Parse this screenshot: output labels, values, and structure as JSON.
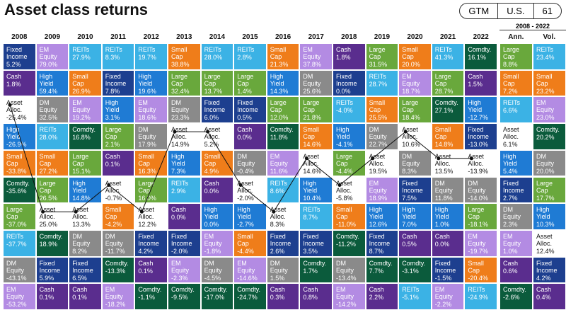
{
  "header": {
    "title": "Asset class returns",
    "badges": [
      "GTM",
      "U.S.",
      "61"
    ]
  },
  "table": {
    "period_label": "2008 - 2022",
    "marked_asset": "Asset Alloc.",
    "asset_colors": {
      "Fixed Income": "#1d3f8f",
      "Cash": "#5a2d8e",
      "Asset Alloc.": "#ffffff",
      "High Yield": "#1f7bd4",
      "Small Cap": "#ef7d1a",
      "Comdty.": "#0b5b3c",
      "Large Cap": "#69a83c",
      "REITs": "#3bb2e5",
      "DM Equity": "#8a8a8a",
      "EM Equity": "#b38be3"
    },
    "columns": [
      {
        "label": "2008",
        "cells": [
          [
            "Fixed Income",
            "5.2%"
          ],
          [
            "Cash",
            "1.8%"
          ],
          [
            "Asset Alloc.",
            "-25.4%"
          ],
          [
            "High Yield",
            "-26.9%"
          ],
          [
            "Small Cap",
            "-33.8%"
          ],
          [
            "Comdty.",
            "-35.6%"
          ],
          [
            "Large Cap",
            "-37.0%"
          ],
          [
            "REITs",
            "-37.7%"
          ],
          [
            "DM Equity",
            "-43.1%"
          ],
          [
            "EM Equity",
            "-53.2%"
          ]
        ]
      },
      {
        "label": "2009",
        "cells": [
          [
            "EM Equity",
            "79.0%"
          ],
          [
            "High Yield",
            "59.4%"
          ],
          [
            "DM Equity",
            "32.5%"
          ],
          [
            "REITs",
            "28.0%"
          ],
          [
            "Small Cap",
            "27.2%"
          ],
          [
            "Large Cap",
            "26.5%"
          ],
          [
            "Asset Alloc.",
            "25.0%"
          ],
          [
            "Comdty.",
            "18.9%"
          ],
          [
            "Fixed Income",
            "5.9%"
          ],
          [
            "Cash",
            "0.1%"
          ]
        ]
      },
      {
        "label": "2010",
        "cells": [
          [
            "REITs",
            "27.9%"
          ],
          [
            "Small Cap",
            "26.9%"
          ],
          [
            "EM Equity",
            "19.2%"
          ],
          [
            "Comdty.",
            "16.8%"
          ],
          [
            "Large Cap",
            "15.1%"
          ],
          [
            "High Yield",
            "14.8%"
          ],
          [
            "Asset Alloc.",
            "13.3%"
          ],
          [
            "DM Equity",
            "8.2%"
          ],
          [
            "Fixed Income",
            "6.5%"
          ],
          [
            "Cash",
            "0.1%"
          ]
        ]
      },
      {
        "label": "2011",
        "cells": [
          [
            "REITs",
            "8.3%"
          ],
          [
            "Fixed Income",
            "7.8%"
          ],
          [
            "High Yield",
            "3.1%"
          ],
          [
            "Large Cap",
            "2.1%"
          ],
          [
            "Cash",
            "0.1%"
          ],
          [
            "Asset Alloc.",
            "-0.7%"
          ],
          [
            "Small Cap",
            "-4.2%"
          ],
          [
            "DM Equity",
            "-11.7%"
          ],
          [
            "Comdty.",
            "-13.3%"
          ],
          [
            "EM Equity",
            "-18.2%"
          ]
        ]
      },
      {
        "label": "2012",
        "cells": [
          [
            "REITs",
            "19.7%"
          ],
          [
            "High Yield",
            "19.6%"
          ],
          [
            "EM Equity",
            "18.6%"
          ],
          [
            "DM Equity",
            "17.9%"
          ],
          [
            "Small Cap",
            "16.3%"
          ],
          [
            "Large Cap",
            "16.0%"
          ],
          [
            "Asset Alloc.",
            "12.2%"
          ],
          [
            "Fixed Income",
            "4.2%"
          ],
          [
            "Cash",
            "0.1%"
          ],
          [
            "Comdty.",
            "-1.1%"
          ]
        ]
      },
      {
        "label": "2013",
        "cells": [
          [
            "Small Cap",
            "38.8%"
          ],
          [
            "Large Cap",
            "32.4%"
          ],
          [
            "DM Equity",
            "23.3%"
          ],
          [
            "Asset Alloc.",
            "14.9%"
          ],
          [
            "High Yield",
            "7.3%"
          ],
          [
            "REITs",
            "2.9%"
          ],
          [
            "Cash",
            "0.0%"
          ],
          [
            "Fixed Income",
            "-2.0%"
          ],
          [
            "EM Equity",
            "-2.3%"
          ],
          [
            "Comdty.",
            "-9.5%"
          ]
        ]
      },
      {
        "label": "2014",
        "cells": [
          [
            "REITs",
            "28.0%"
          ],
          [
            "Large Cap",
            "13.7%"
          ],
          [
            "Fixed Income",
            "6.0%"
          ],
          [
            "Asset Alloc.",
            "5.2%"
          ],
          [
            "Small Cap",
            "4.9%"
          ],
          [
            "Cash",
            "0.0%"
          ],
          [
            "High Yield",
            "0.0%"
          ],
          [
            "EM Equity",
            "-1.8%"
          ],
          [
            "DM Equity",
            "-4.5%"
          ],
          [
            "Comdty.",
            "-17.0%"
          ]
        ]
      },
      {
        "label": "2015",
        "cells": [
          [
            "REITs",
            "2.8%"
          ],
          [
            "Large Cap",
            "1.4%"
          ],
          [
            "Fixed Income",
            "0.5%"
          ],
          [
            "Cash",
            "0.0%"
          ],
          [
            "DM Equity",
            "-0.4%"
          ],
          [
            "Asset Alloc.",
            "-2.0%"
          ],
          [
            "High Yield",
            "-2.7%"
          ],
          [
            "Small Cap",
            "-4.4%"
          ],
          [
            "EM Equity",
            "-14.6%"
          ],
          [
            "Comdty.",
            "-24.7%"
          ]
        ]
      },
      {
        "label": "2016",
        "cells": [
          [
            "Small Cap",
            "21.3%"
          ],
          [
            "High Yield",
            "14.3%"
          ],
          [
            "Large Cap",
            "12.0%"
          ],
          [
            "Comdty.",
            "11.8%"
          ],
          [
            "EM Equity",
            "11.6%"
          ],
          [
            "REITs",
            "8.6%"
          ],
          [
            "Asset Alloc.",
            "8.3%"
          ],
          [
            "Fixed Income",
            "2.6%"
          ],
          [
            "DM Equity",
            "1.5%"
          ],
          [
            "Cash",
            "0.3%"
          ]
        ]
      },
      {
        "label": "2017",
        "cells": [
          [
            "EM Equity",
            "37.8%"
          ],
          [
            "DM Equity",
            "25.6%"
          ],
          [
            "Large Cap",
            "21.8%"
          ],
          [
            "Small Cap",
            "14.6%"
          ],
          [
            "Asset Alloc.",
            "14.6%"
          ],
          [
            "High Yield",
            "10.4%"
          ],
          [
            "REITs",
            "8.7%"
          ],
          [
            "Fixed Income",
            "3.5%"
          ],
          [
            "Comdty.",
            "1.7%"
          ],
          [
            "Cash",
            "0.8%"
          ]
        ]
      },
      {
        "label": "2018",
        "cells": [
          [
            "Cash",
            "1.8%"
          ],
          [
            "Fixed Income",
            "0.0%"
          ],
          [
            "REITs",
            "-4.0%"
          ],
          [
            "High Yield",
            "-4.1%"
          ],
          [
            "Large Cap",
            "-4.4%"
          ],
          [
            "Asset Alloc.",
            "-5.8%"
          ],
          [
            "Small Cap",
            "-11.0%"
          ],
          [
            "Comdty.",
            "-11.2%"
          ],
          [
            "DM Equity",
            "-13.4%"
          ],
          [
            "EM Equity",
            "-14.2%"
          ]
        ]
      },
      {
        "label": "2019",
        "cells": [
          [
            "Large Cap",
            "31.5%"
          ],
          [
            "REITs",
            "28.7%"
          ],
          [
            "Small Cap",
            "25.5%"
          ],
          [
            "DM Equity",
            "22.7%"
          ],
          [
            "Asset Alloc.",
            "19.5%"
          ],
          [
            "EM Equity",
            "18.9%"
          ],
          [
            "High Yield",
            "12.6%"
          ],
          [
            "Fixed Income",
            "8.7%"
          ],
          [
            "Comdty.",
            "7.7%"
          ],
          [
            "Cash",
            "2.2%"
          ]
        ]
      },
      {
        "label": "2020",
        "cells": [
          [
            "Small Cap",
            "20.0%"
          ],
          [
            "EM Equity",
            "18.7%"
          ],
          [
            "Large Cap",
            "18.4%"
          ],
          [
            "Asset Alloc.",
            "10.6%"
          ],
          [
            "DM Equity",
            "8.3%"
          ],
          [
            "Fixed Income",
            "7.5%"
          ],
          [
            "High Yield",
            "7.0%"
          ],
          [
            "Cash",
            "0.5%"
          ],
          [
            "Comdty.",
            "-3.1%"
          ],
          [
            "REITs",
            "-5.1%"
          ]
        ]
      },
      {
        "label": "2021",
        "cells": [
          [
            "REITs",
            "41.3%"
          ],
          [
            "Large Cap",
            "28.7%"
          ],
          [
            "Comdty.",
            "27.1%"
          ],
          [
            "Small Cap",
            "14.8%"
          ],
          [
            "Asset Alloc.",
            "13.5%"
          ],
          [
            "DM Equity",
            "11.8%"
          ],
          [
            "High Yield",
            "1.0%"
          ],
          [
            "Cash",
            "0.0%"
          ],
          [
            "Fixed Income",
            "-1.5%"
          ],
          [
            "EM Equity",
            "-2.2%"
          ]
        ]
      },
      {
        "label": "2022",
        "cells": [
          [
            "Comdty.",
            "16.1%"
          ],
          [
            "Cash",
            "1.5%"
          ],
          [
            "High Yield",
            "-12.7%"
          ],
          [
            "Fixed Income",
            "-13.0%"
          ],
          [
            "Asset Alloc.",
            "-13.9%"
          ],
          [
            "DM Equity",
            "-14.0%"
          ],
          [
            "Large Cap",
            "-18.1%"
          ],
          [
            "EM Equity",
            "-19.7%"
          ],
          [
            "Small Cap",
            "-20.4%"
          ],
          [
            "REITs",
            "-24.9%"
          ]
        ]
      },
      {
        "label": "Ann.",
        "cells": [
          [
            "Large Cap",
            "8.8%"
          ],
          [
            "Small Cap",
            "7.2%"
          ],
          [
            "REITs",
            "6.6%"
          ],
          [
            "Asset Alloc.",
            "6.1%"
          ],
          [
            "High Yield",
            "5.4%"
          ],
          [
            "Fixed Income",
            "2.7%"
          ],
          [
            "DM Equity",
            "2.3%"
          ],
          [
            "EM Equity",
            "1.0%"
          ],
          [
            "Cash",
            "0.6%"
          ],
          [
            "Comdty.",
            "-2.6%"
          ]
        ]
      },
      {
        "label": "Vol.",
        "cells": [
          [
            "REITs",
            "23.4%"
          ],
          [
            "Small Cap",
            "23.2%"
          ],
          [
            "EM Equity",
            "23.0%"
          ],
          [
            "Comdty.",
            "20.2%"
          ],
          [
            "DM Equity",
            "20.0%"
          ],
          [
            "Large Cap",
            "17.7%"
          ],
          [
            "High Yield",
            "10.3%"
          ],
          [
            "Asset Alloc.",
            "12.4%"
          ],
          [
            "Fixed Income",
            "4.2%"
          ],
          [
            "Cash",
            "0.4%"
          ]
        ]
      }
    ]
  }
}
